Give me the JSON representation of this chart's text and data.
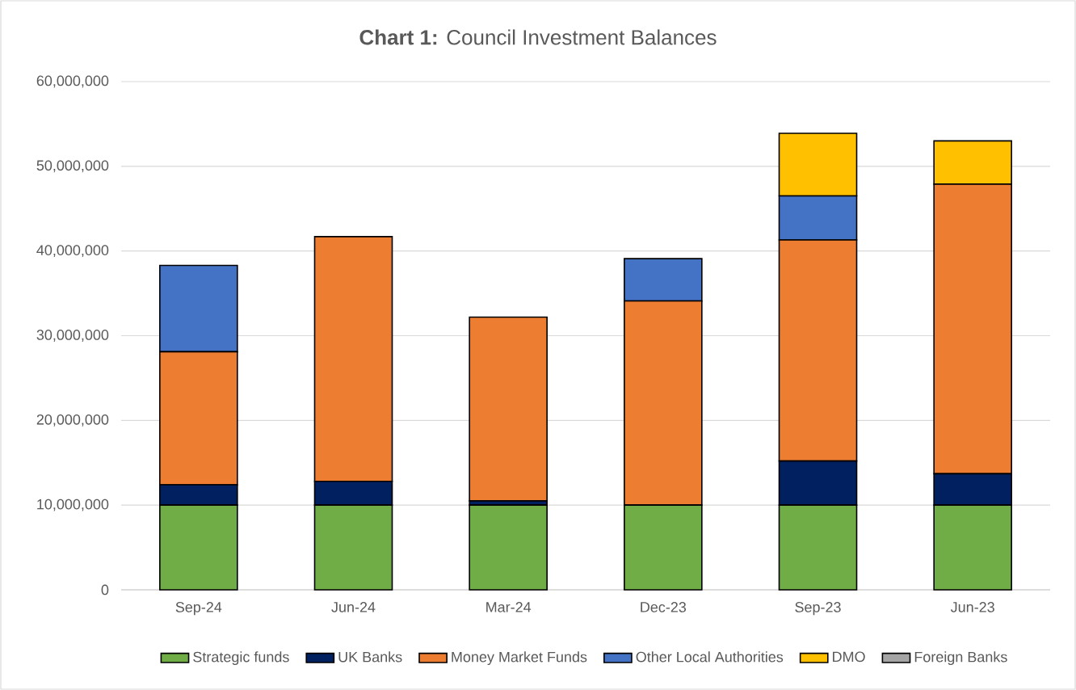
{
  "chart_data": {
    "type": "bar",
    "title": "**Chart 1:** Council Investment Balances",
    "categories": [
      "Sep-24",
      "Jun-24",
      "Mar-24",
      "Dec-23",
      "Sep-23",
      "Jun-23"
    ],
    "stacked": true,
    "series": [
      {
        "name": "Strategic funds",
        "color": "#70ad47",
        "values": [
          10000000,
          10000000,
          10000000,
          10000000,
          10000000,
          10000000
        ]
      },
      {
        "name": "UK Banks",
        "color": "#002060",
        "values": [
          2400000,
          2800000,
          500000,
          null,
          5200000,
          3700000
        ]
      },
      {
        "name": "Money Market Funds",
        "color": "#ed7d31",
        "values": [
          15700000,
          28900000,
          21700000,
          24100000,
          26100000,
          34200000
        ]
      },
      {
        "name": "Other Local Authorities",
        "color": "#4472c4",
        "values": [
          10200000,
          null,
          null,
          5000000,
          5200000,
          null
        ]
      },
      {
        "name": "DMO",
        "color": "#ffc000",
        "values": [
          null,
          null,
          null,
          null,
          7400000,
          5100000
        ]
      },
      {
        "name": "Foreign Banks",
        "color": "#a5a5a5",
        "values": [
          null,
          null,
          null,
          null,
          null,
          null
        ]
      }
    ],
    "ylim": [
      0,
      60000000
    ],
    "yticks": [
      0,
      {
        "value": 10000000,
        "label": "10,000,000"
      },
      {
        "value": 20000000,
        "label": "20,000,000"
      },
      {
        "value": 30000000,
        "label": "30,000,000"
      },
      {
        "value": 40000000,
        "label": "40,000,000"
      },
      {
        "value": 50000000,
        "label": "50,000,000"
      },
      {
        "value": 60000000,
        "label": "60,000,000"
      }
    ],
    "grid": "y",
    "legend": "bottom"
  }
}
